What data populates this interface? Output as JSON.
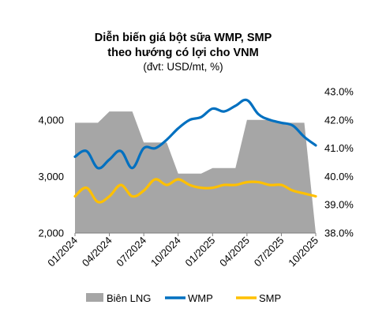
{
  "chart_data": {
    "type": "line",
    "title": "Diễn biến giá bột sữa WMP, SMP",
    "title_line2": "theo hướng có lợi cho VNM",
    "subtitle": "(đvt: USD/mt, %)",
    "x_ticks": [
      "01/2024",
      "04/2024",
      "07/2024",
      "10/2024",
      "01/2025",
      "04/2025",
      "07/2025",
      "10/2025"
    ],
    "y_left": {
      "min": 2000,
      "max": 4500,
      "ticks": [
        2000,
        3000,
        4000
      ],
      "tick_labels": [
        "2,000",
        "3,000",
        "4,000"
      ]
    },
    "y_right": {
      "min": 38.0,
      "max": 43.0,
      "ticks": [
        38,
        39,
        40,
        41,
        42,
        43
      ],
      "tick_labels": [
        "38.0%",
        "39.0%",
        "40.0%",
        "41.0%",
        "42.0%",
        "43.0%"
      ]
    },
    "grid": false,
    "legend_position": "bottom",
    "series": [
      {
        "name": "Biên LNG",
        "kind": "area-step",
        "axis": "right",
        "color": "#a6a6a6",
        "x": [
          "2024-01",
          "2024-03",
          "2024-04",
          "2024-06",
          "2024-07",
          "2024-09",
          "2024-10",
          "2024-12",
          "2025-01",
          "2025-03",
          "2025-04",
          "2025-06",
          "2025-07",
          "2025-09",
          "2025-10"
        ],
        "values": [
          41.9,
          41.9,
          42.3,
          42.3,
          41.2,
          41.2,
          40.1,
          40.1,
          40.3,
          40.3,
          42.0,
          42.0,
          41.9,
          41.9,
          38.0
        ]
      },
      {
        "name": "WMP",
        "kind": "line",
        "axis": "left",
        "color": "#0070c0",
        "x": [
          "2024-01",
          "2024-02",
          "2024-03",
          "2024-04",
          "2024-05",
          "2024-06",
          "2024-07",
          "2024-08",
          "2024-09",
          "2024-10",
          "2024-11",
          "2024-12",
          "2025-01",
          "2025-02",
          "2025-03",
          "2025-04",
          "2025-05",
          "2025-06",
          "2025-07",
          "2025-08",
          "2025-09",
          "2025-10"
        ],
        "values": [
          3350,
          3450,
          3150,
          3300,
          3450,
          3150,
          3500,
          3500,
          3650,
          3850,
          4000,
          4050,
          4200,
          4150,
          4250,
          4350,
          4100,
          4000,
          3950,
          3900,
          3700,
          3550
        ]
      },
      {
        "name": "SMP",
        "kind": "line",
        "axis": "left",
        "color": "#ffc000",
        "x": [
          "2024-01",
          "2024-02",
          "2024-03",
          "2024-04",
          "2024-05",
          "2024-06",
          "2024-07",
          "2024-08",
          "2024-09",
          "2024-10",
          "2024-11",
          "2024-12",
          "2025-01",
          "2025-02",
          "2025-03",
          "2025-04",
          "2025-05",
          "2025-06",
          "2025-07",
          "2025-08",
          "2025-09",
          "2025-10"
        ],
        "values": [
          2650,
          2800,
          2550,
          2650,
          2850,
          2650,
          2750,
          2950,
          2850,
          2950,
          2850,
          2800,
          2800,
          2850,
          2850,
          2900,
          2900,
          2850,
          2850,
          2750,
          2700,
          2650
        ]
      }
    ]
  }
}
